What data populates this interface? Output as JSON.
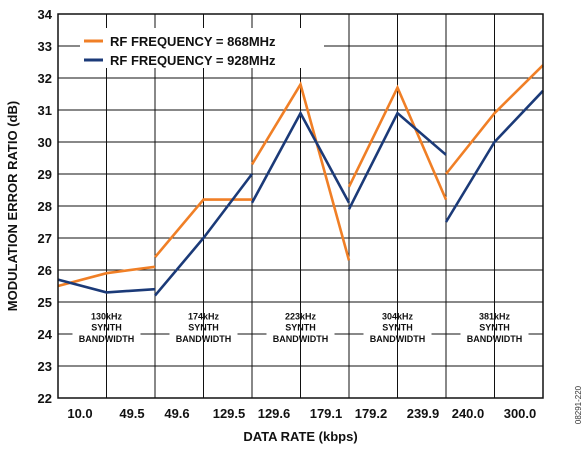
{
  "figure_id": "08291-220",
  "chart_data": {
    "type": "line",
    "xlabel": "DATA RATE (kbps)",
    "ylabel": "MODULATION ERROR RATIO (dB)",
    "ylim": [
      22,
      34
    ],
    "yticks": [
      22,
      23,
      24,
      25,
      26,
      27,
      28,
      29,
      30,
      31,
      32,
      33,
      34
    ],
    "grid": true,
    "legend_position": "top-left",
    "groups": [
      {
        "band_label": [
          "130kHz",
          "SYNTH",
          "BANDWIDTH"
        ],
        "x_tick_labels": [
          "10.0",
          "49.5"
        ],
        "series": [
          {
            "name": "RF FREQUENCY = 868MHz",
            "x": [
              10.0,
              29.75,
              49.5
            ],
            "y": [
              25.5,
              25.9,
              26.1
            ]
          },
          {
            "name": "RF FREQUENCY = 928MHz",
            "x": [
              10.0,
              29.75,
              49.5
            ],
            "y": [
              25.7,
              25.3,
              25.4
            ]
          }
        ]
      },
      {
        "band_label": [
          "174kHz",
          "SYNTH",
          "BANDWIDTH"
        ],
        "x_tick_labels": [
          "49.6",
          "129.5"
        ],
        "series": [
          {
            "name": "RF FREQUENCY = 868MHz",
            "x": [
              49.6,
              89.55,
              129.5
            ],
            "y": [
              26.4,
              28.2,
              28.2
            ]
          },
          {
            "name": "RF FREQUENCY = 928MHz",
            "x": [
              49.6,
              89.55,
              129.5
            ],
            "y": [
              25.2,
              27.0,
              29.0
            ]
          }
        ]
      },
      {
        "band_label": [
          "223kHz",
          "SYNTH",
          "BANDWIDTH"
        ],
        "x_tick_labels": [
          "129.6",
          "179.1"
        ],
        "series": [
          {
            "name": "RF FREQUENCY = 868MHz",
            "x": [
              129.6,
              154.35,
              179.1
            ],
            "y": [
              29.3,
              31.8,
              26.3
            ]
          },
          {
            "name": "RF FREQUENCY = 928MHz",
            "x": [
              129.6,
              154.35,
              179.1
            ],
            "y": [
              28.1,
              30.9,
              28.1
            ]
          }
        ]
      },
      {
        "band_label": [
          "304kHz",
          "SYNTH",
          "BANDWIDTH"
        ],
        "x_tick_labels": [
          "179.2",
          "239.9"
        ],
        "series": [
          {
            "name": "RF FREQUENCY = 868MHz",
            "x": [
              179.2,
              209.55,
              239.9
            ],
            "y": [
              28.6,
              31.7,
              28.2
            ]
          },
          {
            "name": "RF FREQUENCY = 928MHz",
            "x": [
              179.2,
              209.55,
              239.9
            ],
            "y": [
              27.9,
              30.9,
              29.6
            ]
          }
        ]
      },
      {
        "band_label": [
          "381kHz",
          "SYNTH",
          "BANDWIDTH"
        ],
        "x_tick_labels": [
          "240.0",
          "300.0"
        ],
        "series": [
          {
            "name": "RF FREQUENCY = 868MHz",
            "x": [
              240.0,
              270.0,
              300.0
            ],
            "y": [
              29.0,
              30.9,
              32.4
            ]
          },
          {
            "name": "RF FREQUENCY = 928MHz",
            "x": [
              240.0,
              270.0,
              300.0
            ],
            "y": [
              27.5,
              30.0,
              31.6
            ]
          }
        ]
      }
    ],
    "legend": [
      {
        "name": "RF FREQUENCY = 868MHz",
        "color": "#f07f26"
      },
      {
        "name": "RF FREQUENCY = 928MHz",
        "color": "#1b3a78"
      }
    ]
  }
}
